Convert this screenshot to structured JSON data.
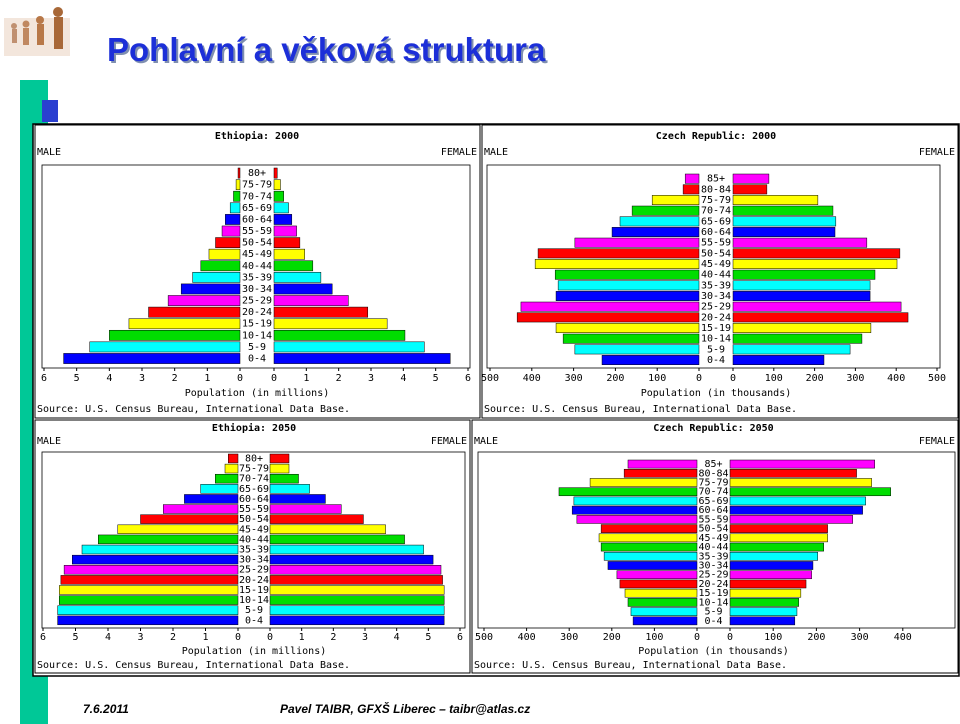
{
  "slide": {
    "title": "Pohlavní a věková struktura",
    "date": "7.6.2011",
    "author": "Pavel TAIBR, GFXŠ Liberec – taibr@atlas.cz"
  },
  "chart_data": [
    {
      "type": "pyramid",
      "title": "Ethiopia: 2000",
      "x_label": "Population (in millions)",
      "source": "Source: U.S. Census Bureau, International Data Base.",
      "categories": [
        "80+",
        "75-79",
        "70-74",
        "65-69",
        "60-64",
        "55-59",
        "50-54",
        "45-49",
        "40-44",
        "35-39",
        "30-34",
        "25-29",
        "20-24",
        "15-19",
        "10-14",
        "5-9",
        "0-4"
      ],
      "colors": [
        "#ff0000",
        "#ffff00",
        "#00dd00",
        "#00ffff",
        "#0000ff",
        "#ff00ff",
        "#ff0000",
        "#ffff00",
        "#00dd00",
        "#00ffff",
        "#0000ff",
        "#ff00ff",
        "#ff0000",
        "#ffff00",
        "#00dd00",
        "#00ffff",
        "#0000ff"
      ],
      "series": [
        {
          "name": "MALE",
          "xlim": [
            0,
            6
          ],
          "xticks": [
            0,
            1,
            2,
            3,
            4,
            5,
            6
          ],
          "values": [
            0.06,
            0.12,
            0.2,
            0.3,
            0.45,
            0.55,
            0.75,
            0.95,
            1.2,
            1.45,
            1.8,
            2.2,
            2.8,
            3.4,
            4.0,
            4.6,
            5.4
          ]
        },
        {
          "name": "FEMALE",
          "xlim": [
            0,
            6
          ],
          "xticks": [
            0,
            1,
            2,
            3,
            4,
            5,
            6
          ],
          "values": [
            0.1,
            0.2,
            0.3,
            0.45,
            0.55,
            0.7,
            0.8,
            0.95,
            1.2,
            1.45,
            1.8,
            2.3,
            2.9,
            3.5,
            4.05,
            4.65,
            5.45
          ]
        }
      ]
    },
    {
      "type": "pyramid",
      "title": "Czech Republic: 2000",
      "x_label": "Population (in thousands)",
      "source": "Source: U.S. Census Bureau, International Data Base.",
      "categories": [
        "85+",
        "80-84",
        "75-79",
        "70-74",
        "65-69",
        "60-64",
        "55-59",
        "50-54",
        "45-49",
        "40-44",
        "35-39",
        "30-34",
        "25-29",
        "20-24",
        "15-19",
        "10-14",
        "5-9",
        "0-4"
      ],
      "colors": [
        "#ff00ff",
        "#ff0000",
        "#ffff00",
        "#00dd00",
        "#00ffff",
        "#0000ff",
        "#ff00ff",
        "#ff0000",
        "#ffff00",
        "#00dd00",
        "#00ffff",
        "#0000ff",
        "#ff00ff",
        "#ff0000",
        "#ffff00",
        "#00dd00",
        "#00ffff",
        "#0000ff"
      ],
      "series": [
        {
          "name": "MALE",
          "xlim": [
            0,
            500
          ],
          "xticks": [
            0,
            100,
            200,
            300,
            400,
            500
          ],
          "values": [
            33,
            38,
            112,
            160,
            189,
            208,
            297,
            385,
            392,
            344,
            337,
            342,
            426,
            435,
            342,
            325,
            297,
            232
          ]
        },
        {
          "name": "FEMALE",
          "xlim": [
            0,
            500
          ],
          "xticks": [
            0,
            100,
            200,
            300,
            400,
            500
          ],
          "values": [
            88,
            83,
            208,
            245,
            252,
            250,
            328,
            409,
            402,
            348,
            336,
            336,
            412,
            429,
            338,
            316,
            287,
            223
          ]
        }
      ]
    },
    {
      "type": "pyramid",
      "title": "Ethiopia: 2050",
      "x_label": "Population (in millions)",
      "source": "Source: U.S. Census Bureau, International Data Base.",
      "categories": [
        "80+",
        "75-79",
        "70-74",
        "65-69",
        "60-64",
        "55-59",
        "50-54",
        "45-49",
        "40-44",
        "35-39",
        "30-34",
        "25-29",
        "20-24",
        "15-19",
        "10-14",
        "5-9",
        "0-4"
      ],
      "colors": [
        "#ff0000",
        "#ffff00",
        "#00dd00",
        "#00ffff",
        "#0000ff",
        "#ff00ff",
        "#ff0000",
        "#ffff00",
        "#00dd00",
        "#00ffff",
        "#0000ff",
        "#ff00ff",
        "#ff0000",
        "#ffff00",
        "#00dd00",
        "#00ffff",
        "#0000ff"
      ],
      "series": [
        {
          "name": "MALE",
          "xlim": [
            0,
            6
          ],
          "xticks": [
            0,
            1,
            2,
            3,
            4,
            5,
            6
          ],
          "values": [
            0.3,
            0.4,
            0.7,
            1.15,
            1.65,
            2.3,
            3.0,
            3.7,
            4.3,
            4.8,
            5.1,
            5.35,
            5.45,
            5.5,
            5.5,
            5.55,
            5.55
          ]
        },
        {
          "name": "FEMALE",
          "xlim": [
            0,
            6
          ],
          "xticks": [
            0,
            1,
            2,
            3,
            4,
            5,
            6
          ],
          "values": [
            0.6,
            0.6,
            0.9,
            1.25,
            1.75,
            2.25,
            2.95,
            3.65,
            4.25,
            4.85,
            5.15,
            5.4,
            5.45,
            5.5,
            5.5,
            5.5,
            5.5
          ]
        }
      ]
    },
    {
      "type": "pyramid",
      "title": "Czech Republic: 2050",
      "x_label": "Population (in thousands)",
      "source": "Source: U.S. Census Bureau, International Data Base.",
      "categories": [
        "85+",
        "80-84",
        "75-79",
        "70-74",
        "65-69",
        "60-64",
        "55-59",
        "50-54",
        "45-49",
        "40-44",
        "35-39",
        "30-34",
        "25-29",
        "20-24",
        "15-19",
        "10-14",
        "5-9",
        "0-4"
      ],
      "colors": [
        "#ff00ff",
        "#ff0000",
        "#ffff00",
        "#00dd00",
        "#00ffff",
        "#0000ff",
        "#ff00ff",
        "#ff0000",
        "#ffff00",
        "#00dd00",
        "#00ffff",
        "#0000ff",
        "#ff00ff",
        "#ff0000",
        "#ffff00",
        "#00dd00",
        "#00ffff",
        "#0000ff"
      ],
      "series": [
        {
          "name": "MALE",
          "xlim": [
            0,
            500
          ],
          "xticks": [
            0,
            100,
            200,
            300,
            400,
            500
          ],
          "values": [
            162,
            171,
            251,
            324,
            289,
            293,
            282,
            225,
            230,
            225,
            218,
            209,
            188,
            181,
            169,
            162,
            155,
            150
          ]
        },
        {
          "name": "FEMALE",
          "xlim": [
            0,
            500
          ],
          "xticks": [
            0,
            100,
            200,
            300,
            400
          ],
          "values": [
            335,
            293,
            328,
            372,
            314,
            307,
            284,
            226,
            226,
            217,
            203,
            192,
            189,
            176,
            164,
            159,
            155,
            150
          ]
        }
      ]
    }
  ]
}
